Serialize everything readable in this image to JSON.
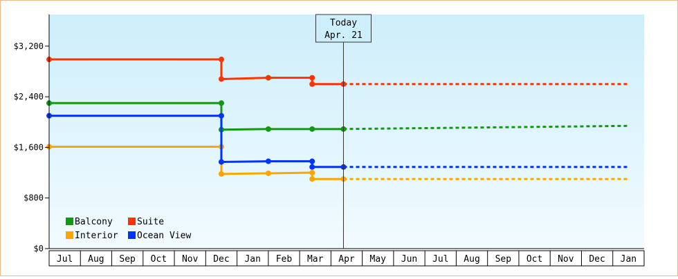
{
  "chart_data": {
    "type": "line",
    "step": true,
    "y_tick_labels": [
      "$0",
      "$800",
      "$1,600",
      "$2,400",
      "$3,200"
    ],
    "y_ticks": [
      0,
      800,
      1600,
      2400,
      3200
    ],
    "ylim": [
      0,
      3700
    ],
    "x_tick_labels": [
      "Jul",
      "Aug",
      "Sep",
      "Oct",
      "Nov",
      "Dec",
      "Jan",
      "Feb",
      "Mar",
      "Apr",
      "May",
      "Jun",
      "Jul",
      "Aug",
      "Sep",
      "Oct",
      "Nov",
      "Dec",
      "Jan"
    ],
    "today": {
      "line1": "Today",
      "line2": "Apr. 21",
      "x": 9.4
    },
    "legend": {
      "placement": "bottom-left"
    },
    "series": [
      {
        "name": "Balcony",
        "color": "#119911",
        "actual": [
          [
            0,
            2300
          ],
          [
            5.5,
            2300
          ],
          [
            5.5,
            1880
          ],
          [
            7.0,
            1890
          ],
          [
            8.4,
            1890
          ],
          [
            9.4,
            1890
          ]
        ],
        "forecast": [
          [
            9.4,
            1890
          ],
          [
            18.5,
            1940
          ]
        ]
      },
      {
        "name": "Suite",
        "color": "#ff3300",
        "actual": [
          [
            0,
            2990
          ],
          [
            5.5,
            2990
          ],
          [
            5.5,
            2680
          ],
          [
            7.0,
            2700
          ],
          [
            8.4,
            2700
          ],
          [
            8.4,
            2600
          ],
          [
            9.4,
            2600
          ]
        ],
        "forecast": [
          [
            9.4,
            2600
          ],
          [
            18.5,
            2600
          ]
        ]
      },
      {
        "name": "Interior",
        "color": "#ffa500",
        "actual": [
          [
            0,
            1610
          ],
          [
            5.5,
            1610
          ],
          [
            5.5,
            1180
          ],
          [
            7.0,
            1190
          ],
          [
            8.4,
            1200
          ],
          [
            8.4,
            1100
          ],
          [
            9.4,
            1100
          ]
        ],
        "forecast": [
          [
            9.4,
            1100
          ],
          [
            18.5,
            1100
          ]
        ]
      },
      {
        "name": "Ocean View",
        "color": "#0033ff",
        "actual": [
          [
            0,
            2100
          ],
          [
            5.5,
            2100
          ],
          [
            5.5,
            1370
          ],
          [
            7.0,
            1380
          ],
          [
            8.4,
            1380
          ],
          [
            8.4,
            1290
          ],
          [
            9.4,
            1290
          ]
        ],
        "forecast": [
          [
            9.4,
            1290
          ],
          [
            18.5,
            1290
          ]
        ]
      }
    ]
  }
}
